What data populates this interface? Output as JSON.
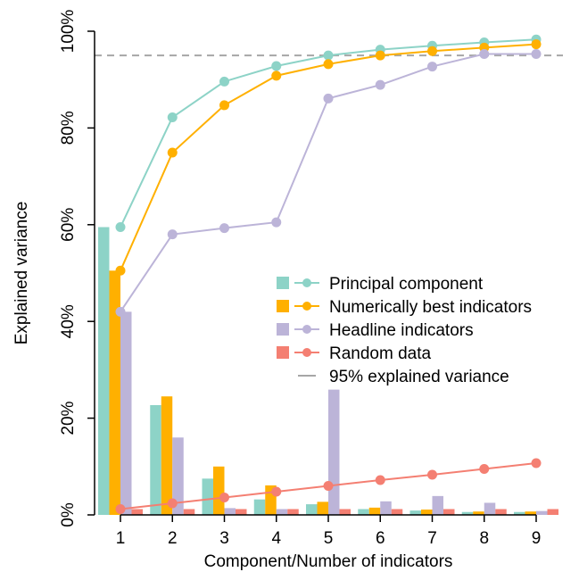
{
  "chart_data": {
    "type": "bar+line",
    "title": "",
    "xlabel": "Component/Number of indicators",
    "ylabel": "Explained variance",
    "categories": [
      "1",
      "2",
      "3",
      "4",
      "5",
      "6",
      "7",
      "8",
      "9"
    ],
    "ylim": [
      0,
      100
    ],
    "yticks": [
      "0%",
      "20%",
      "40%",
      "60%",
      "80%",
      "100%"
    ],
    "y_tick_values": [
      0,
      20,
      40,
      60,
      80,
      100
    ],
    "grid": false,
    "legend_position": "center-right",
    "reference_line": {
      "label": "95% explained variance",
      "value": 95,
      "color": "#a6a6a6",
      "style": "dashed"
    },
    "series": [
      {
        "name": "Principal component",
        "color": "#8dd3c7",
        "bar_values": [
          59.5,
          22.7,
          7.5,
          3.2,
          2.2,
          1.2,
          0.9,
          0.6,
          0.6
        ],
        "cumulative_values": [
          59.5,
          82.2,
          89.6,
          92.8,
          95.0,
          96.2,
          97.0,
          97.7,
          98.3
        ]
      },
      {
        "name": "Numerically best indicators",
        "color": "#ffb000",
        "bar_values": [
          50.5,
          24.5,
          10.0,
          6.1,
          2.7,
          1.5,
          1.1,
          0.7,
          0.7
        ],
        "cumulative_values": [
          50.5,
          74.9,
          84.7,
          90.8,
          93.2,
          95.0,
          95.9,
          96.6,
          97.3
        ]
      },
      {
        "name": "Headline indicators",
        "color": "#bcb4d8",
        "bar_values": [
          42.0,
          16.0,
          1.4,
          1.2,
          25.9,
          2.8,
          3.9,
          2.5,
          0.8
        ],
        "cumulative_values": [
          42.0,
          58.0,
          59.3,
          60.5,
          86.1,
          88.9,
          92.7,
          95.3,
          95.3
        ]
      },
      {
        "name": "Random data",
        "color": "#f47f72",
        "bar_values": [
          1.2,
          1.2,
          1.2,
          1.2,
          1.2,
          1.2,
          1.2,
          1.2,
          1.2
        ],
        "cumulative_values": [
          1.2,
          2.4,
          3.6,
          4.8,
          6.0,
          7.2,
          8.3,
          9.5,
          10.7
        ]
      }
    ]
  }
}
